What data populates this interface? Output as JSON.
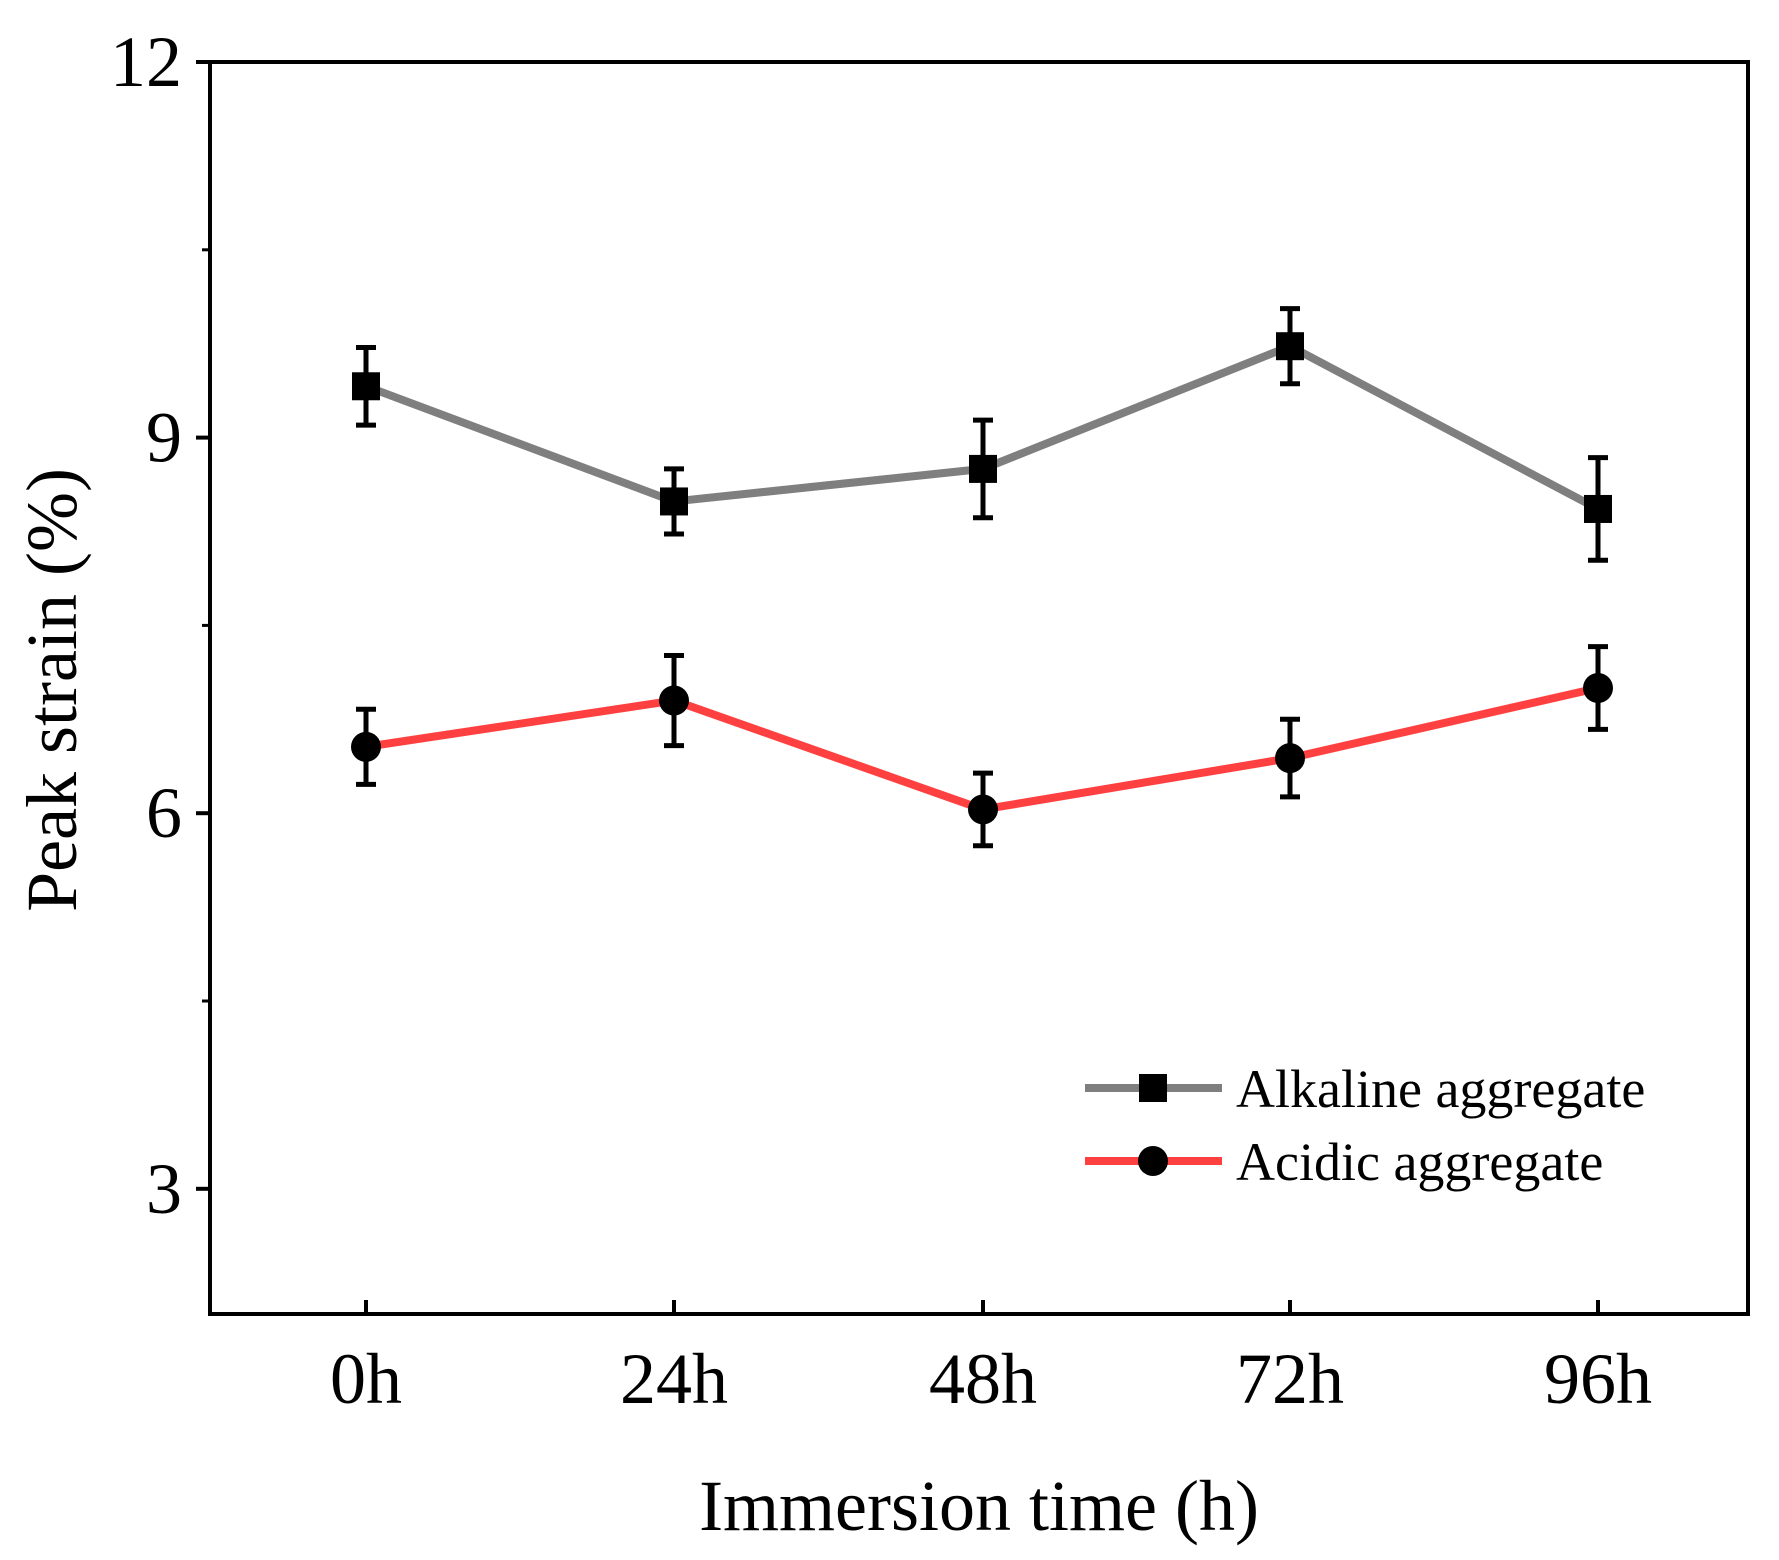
{
  "chart_data": {
    "type": "line",
    "xlabel": "Immersion time (h)",
    "ylabel": "Peak strain (%)",
    "categories": [
      "0h",
      "24h",
      "48h",
      "72h",
      "96h"
    ],
    "ylim": [
      2,
      12
    ],
    "yticks": [
      3,
      6,
      9,
      12
    ],
    "yminor_ticks": [
      4.5,
      7.5,
      10.5
    ],
    "grid": false,
    "legend_position": "lower-right",
    "series": [
      {
        "name": "Alkaline aggregate",
        "color": "#7f7f7f",
        "marker": "square",
        "values": [
          9.41,
          8.49,
          8.75,
          9.73,
          8.43
        ],
        "errors": [
          0.31,
          0.26,
          0.39,
          0.3,
          0.41
        ]
      },
      {
        "name": "Acidic aggregate",
        "color": "#ff4040",
        "marker": "circle",
        "values": [
          6.53,
          6.9,
          6.03,
          6.44,
          7.0
        ],
        "errors": [
          0.3,
          0.36,
          0.29,
          0.31,
          0.33
        ]
      }
    ]
  }
}
